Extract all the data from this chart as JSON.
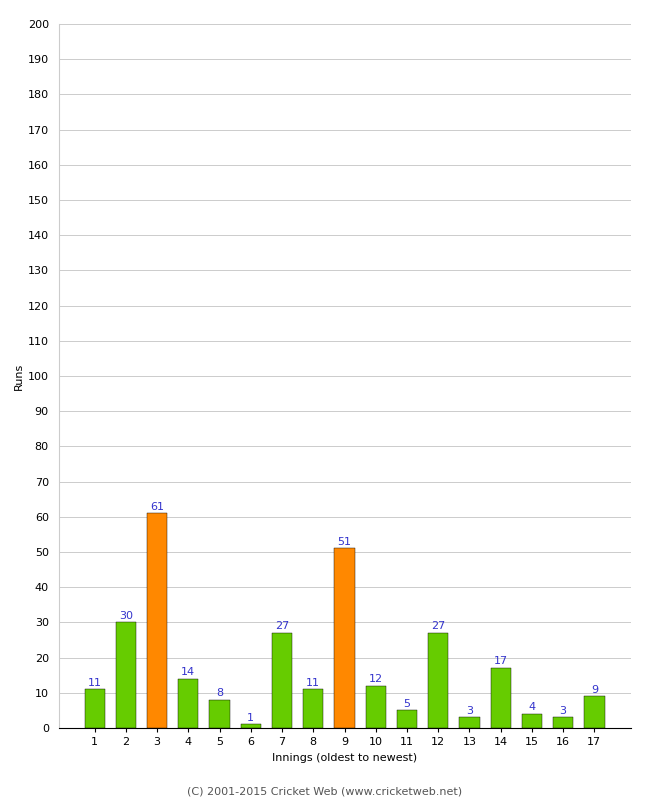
{
  "innings": [
    1,
    2,
    3,
    4,
    5,
    6,
    7,
    8,
    9,
    10,
    11,
    12,
    13,
    14,
    15,
    16,
    17
  ],
  "runs": [
    11,
    30,
    61,
    14,
    8,
    1,
    27,
    11,
    51,
    12,
    5,
    27,
    3,
    17,
    4,
    3,
    9
  ],
  "colors": [
    "#66cc00",
    "#66cc00",
    "#ff8800",
    "#66cc00",
    "#66cc00",
    "#66cc00",
    "#66cc00",
    "#66cc00",
    "#ff8800",
    "#66cc00",
    "#66cc00",
    "#66cc00",
    "#66cc00",
    "#66cc00",
    "#66cc00",
    "#66cc00",
    "#66cc00"
  ],
  "ylabel": "Runs",
  "xlabel": "Innings (oldest to newest)",
  "ylim": [
    0,
    200
  ],
  "yticks": [
    0,
    10,
    20,
    30,
    40,
    50,
    60,
    70,
    80,
    90,
    100,
    110,
    120,
    130,
    140,
    150,
    160,
    170,
    180,
    190,
    200
  ],
  "label_color": "#3333cc",
  "footer": "(C) 2001-2015 Cricket Web (www.cricketweb.net)",
  "background_color": "#ffffff",
  "grid_color": "#cccccc",
  "bar_width": 0.65,
  "tick_fontsize": 8,
  "label_fontsize": 8,
  "ylabel_fontsize": 8,
  "xlabel_fontsize": 8,
  "footer_fontsize": 8
}
